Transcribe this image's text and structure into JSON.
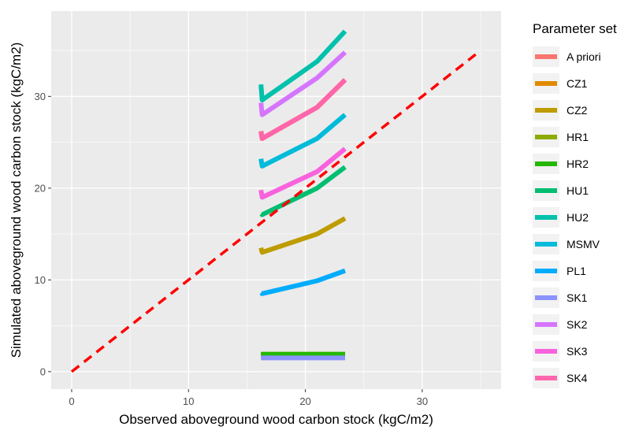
{
  "chart_data": {
    "type": "line",
    "title": "",
    "xlabel": "Observed aboveground wood carbon stock (kgC/m2)",
    "ylabel": "Simulated aboveground wood carbon stock (kgC/m2)",
    "xlim": [
      -1.75,
      36.75
    ],
    "ylim": [
      -1.9,
      39.3
    ],
    "x_ticks": [
      0,
      10,
      20,
      30
    ],
    "y_ticks": [
      0,
      10,
      20,
      30
    ],
    "grid": true,
    "legend": {
      "title": "Parameter set",
      "position": "right"
    },
    "reference_line": {
      "x": [
        0,
        35
      ],
      "y": [
        0,
        35
      ],
      "color": "#ff0000",
      "style": "dashed"
    },
    "series": [
      {
        "name": "A priori",
        "color": "#F8766D",
        "x": [
          16.2,
          16.3,
          21,
          23.4
        ],
        "y": [
          26.2,
          25.4,
          28.8,
          31.8
        ]
      },
      {
        "name": "CZ1",
        "color": "#E18A00",
        "x": [
          16.2,
          16.3,
          21,
          23.4
        ],
        "y": [
          26.2,
          25.4,
          28.8,
          31.8
        ]
      },
      {
        "name": "CZ2",
        "color": "#BE9C00",
        "x": [
          16.2,
          16.3,
          21,
          23.4
        ],
        "y": [
          13.5,
          13.0,
          15.0,
          16.7
        ]
      },
      {
        "name": "HR1",
        "color": "#8CAB00",
        "x": [
          16.2,
          23.4
        ],
        "y": [
          1.9,
          1.9
        ]
      },
      {
        "name": "HR2",
        "color": "#24B700",
        "x": [
          16.2,
          23.4
        ],
        "y": [
          1.9,
          1.9
        ]
      },
      {
        "name": "HU1",
        "color": "#00BE70",
        "x": [
          16.2,
          16.3,
          21,
          23.4
        ],
        "y": [
          17.2,
          17.1,
          20.0,
          22.3
        ]
      },
      {
        "name": "HU2",
        "color": "#00C1AB",
        "x": [
          16.2,
          16.3,
          21,
          23.4
        ],
        "y": [
          31.3,
          29.6,
          33.8,
          37.1
        ]
      },
      {
        "name": "MSMV",
        "color": "#00BBDA",
        "x": [
          16.2,
          16.3,
          21,
          23.4
        ],
        "y": [
          23.2,
          22.4,
          25.4,
          28.0
        ]
      },
      {
        "name": "PL1",
        "color": "#00ACFC",
        "x": [
          16.2,
          16.3,
          21,
          23.4
        ],
        "y": [
          8.6,
          8.5,
          9.9,
          11.0
        ]
      },
      {
        "name": "SK1",
        "color": "#8B93FF",
        "x": [
          16.2,
          16.3,
          21,
          23.4
        ],
        "y": [
          1.5,
          1.5,
          1.5,
          1.5
        ]
      },
      {
        "name": "SK2",
        "color": "#D575FE",
        "x": [
          16.2,
          16.3,
          21,
          23.4
        ],
        "y": [
          29.3,
          28.0,
          32.0,
          34.8
        ]
      },
      {
        "name": "SK3",
        "color": "#F962DD",
        "x": [
          16.2,
          16.3,
          21,
          23.4
        ],
        "y": [
          19.8,
          19.0,
          21.8,
          24.3
        ]
      },
      {
        "name": "SK4",
        "color": "#FF65AC",
        "x": [
          16.2,
          16.3,
          21,
          23.4
        ],
        "y": [
          26.2,
          25.4,
          28.8,
          31.8
        ]
      }
    ]
  }
}
